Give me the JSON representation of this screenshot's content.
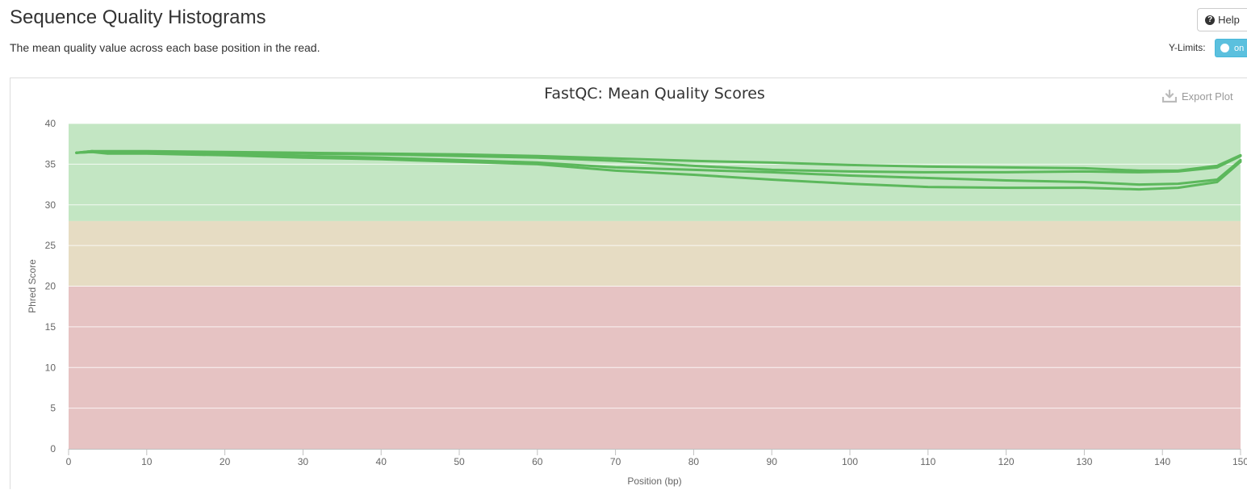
{
  "header": {
    "title": "Sequence Quality Histograms",
    "subtitle": "The mean quality value across each base position in the read.",
    "help_label": "Help",
    "ylimits_label": "Y-Limits:",
    "ylimits_toggle_label": "on"
  },
  "plot": {
    "export_label": "Export Plot"
  },
  "colors": {
    "zone_good": "#c3e6c3",
    "zone_warn": "#e6dcc3",
    "zone_fail": "#e6c3c3",
    "line": "#5cb85c"
  },
  "chart_data": {
    "type": "line",
    "title": "FastQC: Mean Quality Scores",
    "xlabel": "Position (bp)",
    "ylabel": "Phred Score",
    "xlim": [
      0,
      150
    ],
    "ylim": [
      0,
      40
    ],
    "xticks": [
      0,
      10,
      20,
      30,
      40,
      50,
      60,
      70,
      80,
      90,
      100,
      110,
      120,
      130,
      140,
      150
    ],
    "yticks": [
      0,
      5,
      10,
      15,
      20,
      25,
      30,
      35,
      40
    ],
    "zones": [
      {
        "from": 28,
        "to": 40,
        "level": "good"
      },
      {
        "from": 20,
        "to": 28,
        "level": "warn"
      },
      {
        "from": 0,
        "to": 20,
        "level": "fail"
      }
    ],
    "series": [
      {
        "x": [
          1,
          3,
          5,
          10,
          20,
          30,
          40,
          50,
          60,
          70,
          80,
          90,
          100,
          110,
          120,
          130,
          137,
          142,
          147,
          150
        ],
        "y": [
          36.4,
          36.6,
          36.6,
          36.6,
          36.5,
          36.4,
          36.3,
          36.2,
          36.0,
          35.7,
          35.4,
          35.2,
          34.9,
          34.7,
          34.6,
          34.5,
          34.2,
          34.2,
          34.8,
          36.1
        ]
      },
      {
        "x": [
          1,
          3,
          5,
          10,
          20,
          30,
          40,
          50,
          60,
          70,
          80,
          90,
          100,
          110,
          120,
          130,
          137,
          142,
          147,
          150
        ],
        "y": [
          36.4,
          36.5,
          36.5,
          36.5,
          36.4,
          36.3,
          36.2,
          36.0,
          35.8,
          35.4,
          34.8,
          34.3,
          34.1,
          34.0,
          34.0,
          34.1,
          34.0,
          34.1,
          34.6,
          36.0
        ]
      },
      {
        "x": [
          1,
          3,
          5,
          10,
          20,
          30,
          40,
          50,
          60,
          70,
          80,
          90,
          100,
          110,
          120,
          130,
          137,
          142,
          147,
          150
        ],
        "y": [
          36.4,
          36.6,
          36.4,
          36.4,
          36.2,
          36.0,
          35.8,
          35.5,
          35.2,
          34.6,
          34.3,
          34.0,
          33.6,
          33.3,
          33.0,
          32.8,
          32.5,
          32.6,
          33.1,
          35.5
        ]
      },
      {
        "x": [
          1,
          3,
          5,
          10,
          20,
          30,
          40,
          50,
          60,
          70,
          80,
          90,
          100,
          110,
          120,
          130,
          137,
          142,
          147,
          150
        ],
        "y": [
          36.4,
          36.5,
          36.3,
          36.3,
          36.1,
          35.8,
          35.6,
          35.3,
          35.0,
          34.2,
          33.7,
          33.1,
          32.6,
          32.2,
          32.1,
          32.1,
          31.9,
          32.1,
          32.8,
          35.3
        ]
      }
    ]
  }
}
